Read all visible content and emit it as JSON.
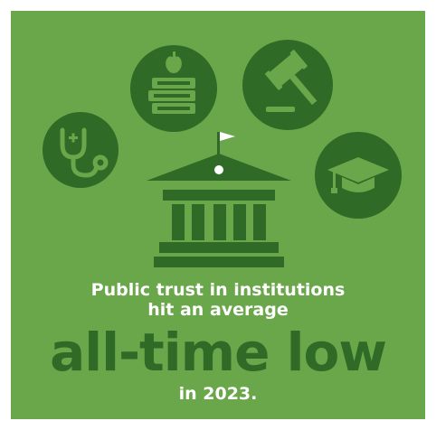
{
  "colors": {
    "background": "#6aa64a",
    "dark_green": "#2f6a26",
    "icon_fg": "#6aa64a",
    "text_white": "#ffffff"
  },
  "icons": {
    "healthcare": "stethoscope-icon",
    "education_books": "books-apple-icon",
    "justice": "gavel-icon",
    "higher_education": "graduation-cap-icon",
    "government": "government-building-icon"
  },
  "text": {
    "line1": "Public trust in institutions",
    "line2": "hit an average",
    "big": "all-time low",
    "line4": "in 2023."
  }
}
